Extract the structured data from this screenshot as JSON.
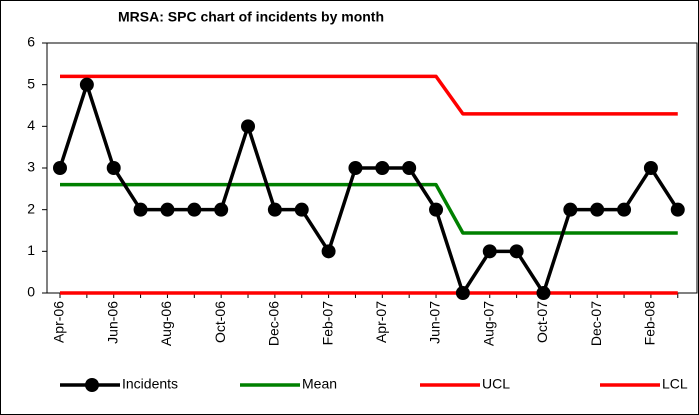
{
  "chart_data": {
    "type": "line",
    "title": "MRSA: SPC chart of incidents by month",
    "categories": [
      "Apr-06",
      null,
      "Jun-06",
      null,
      "Aug-06",
      null,
      "Oct-06",
      null,
      "Dec-06",
      null,
      "Feb-07",
      null,
      "Apr-07",
      null,
      "Jun-07",
      null,
      "Aug-07",
      null,
      "Oct-07",
      null,
      "Dec-07",
      null,
      "Feb-08",
      null
    ],
    "series": [
      {
        "name": "Incidents",
        "color": "#000000",
        "marker": true,
        "values": [
          3,
          5,
          3,
          2,
          2,
          2,
          2,
          4,
          2,
          2,
          1,
          3,
          3,
          3,
          2,
          0,
          1,
          1,
          0,
          2,
          2,
          2,
          3,
          2
        ]
      },
      {
        "name": "Mean",
        "color": "#008000",
        "marker": false,
        "values": [
          2.6,
          2.6,
          2.6,
          2.6,
          2.6,
          2.6,
          2.6,
          2.6,
          2.6,
          2.6,
          2.6,
          2.6,
          2.6,
          2.6,
          2.6,
          1.44,
          1.44,
          1.44,
          1.44,
          1.44,
          1.44,
          1.44,
          1.44,
          1.44
        ]
      },
      {
        "name": "UCL",
        "color": "#ff0000",
        "marker": false,
        "values": [
          5.2,
          5.2,
          5.2,
          5.2,
          5.2,
          5.2,
          5.2,
          5.2,
          5.2,
          5.2,
          5.2,
          5.2,
          5.2,
          5.2,
          5.2,
          4.3,
          4.3,
          4.3,
          4.3,
          4.3,
          4.3,
          4.3,
          4.3,
          4.3
        ]
      },
      {
        "name": "LCL",
        "color": "#ff0000",
        "marker": false,
        "values": [
          0,
          0,
          0,
          0,
          0,
          0,
          0,
          0,
          0,
          0,
          0,
          0,
          0,
          0,
          0,
          0,
          0,
          0,
          0,
          0,
          0,
          0,
          0,
          0
        ]
      }
    ],
    "ylim": [
      0,
      6
    ],
    "yticks": [
      0,
      1,
      2,
      3,
      4,
      5,
      6
    ],
    "grid": false
  }
}
